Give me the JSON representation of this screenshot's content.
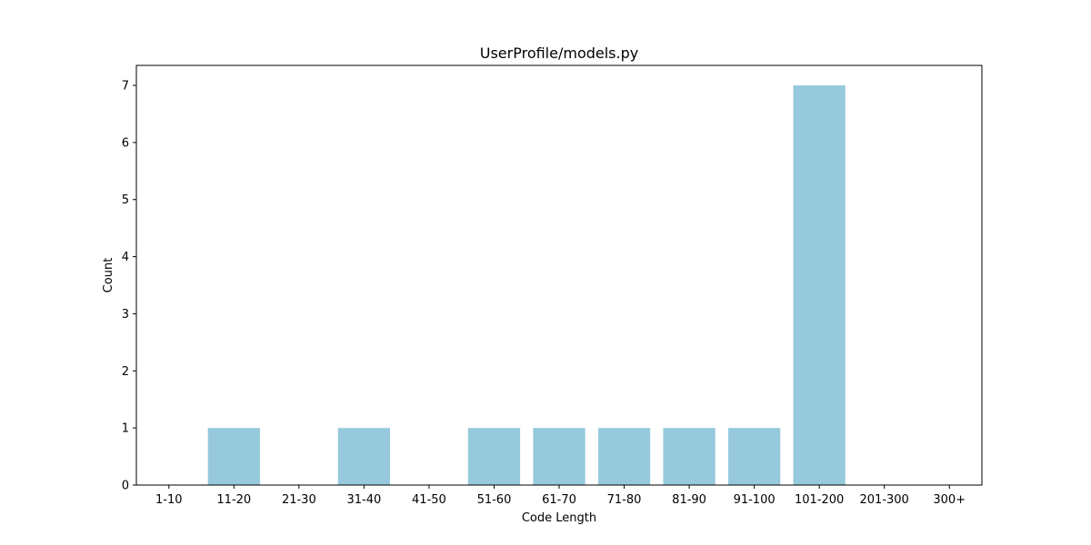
{
  "chart_data": {
    "type": "bar",
    "title": "UserProfile/models.py",
    "xlabel": "Code Length",
    "ylabel": "Count",
    "categories": [
      "1-10",
      "11-20",
      "21-30",
      "31-40",
      "41-50",
      "51-60",
      "61-70",
      "71-80",
      "81-90",
      "91-100",
      "101-200",
      "201-300",
      "300+"
    ],
    "values": [
      0,
      1,
      0,
      1,
      0,
      1,
      1,
      1,
      1,
      1,
      7,
      0,
      0
    ],
    "yticks": [
      0,
      1,
      2,
      3,
      4,
      5,
      6,
      7
    ],
    "ylim": [
      0,
      7.35
    ],
    "bar_color": "#96c9dc",
    "grid": false,
    "legend": "none"
  }
}
